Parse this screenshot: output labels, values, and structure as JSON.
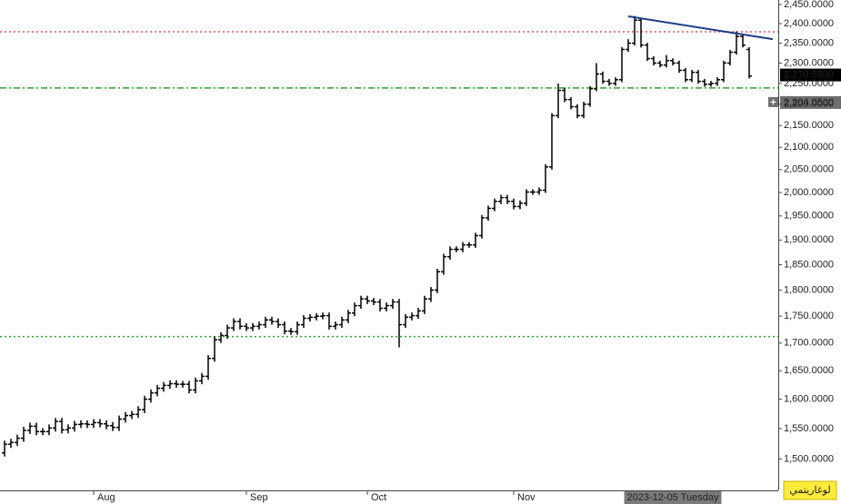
{
  "chart_data": {
    "type": "ohlc",
    "color": "#000000",
    "log_scale": true,
    "grid": false,
    "categories": [
      null,
      null,
      null,
      null,
      null,
      null,
      null,
      null,
      null,
      null,
      null,
      null,
      null,
      null,
      "Aug",
      null,
      null,
      null,
      null,
      null,
      null,
      null,
      null,
      null,
      null,
      null,
      null,
      null,
      null,
      null,
      null,
      null,
      null,
      null,
      null,
      null,
      null,
      null,
      "Sep",
      null,
      null,
      null,
      null,
      null,
      null,
      null,
      null,
      null,
      null,
      null,
      null,
      null,
      null,
      null,
      null,
      null,
      null,
      "Oct",
      null,
      null,
      null,
      null,
      null,
      null,
      null,
      null,
      null,
      null,
      null,
      null,
      null,
      null,
      null,
      null,
      null,
      null,
      null,
      null,
      null,
      null,
      "Nov",
      null,
      null,
      null,
      null,
      null,
      null,
      null,
      null,
      null,
      null,
      null,
      null,
      null,
      null,
      null,
      null,
      null,
      null,
      null,
      null,
      null,
      null,
      null,
      null,
      "2023-12-05 Tuesday",
      null,
      null,
      null,
      null,
      null,
      null,
      null,
      null,
      null,
      null,
      null,
      null
    ],
    "highlighted_category": 105,
    "open": [
      1510,
      1524,
      1527,
      1534,
      1547,
      1554,
      1545,
      1545,
      1551,
      1562,
      1548,
      1551,
      1557,
      1558,
      1557,
      1560,
      1558,
      1555,
      1552,
      1566,
      1572,
      1574,
      1582,
      1600,
      1611,
      1619,
      1624,
      1627,
      1626,
      1626,
      1616,
      1632,
      1640,
      1672,
      1706,
      1714,
      1728,
      1740,
      1731,
      1728,
      1731,
      1734,
      1743,
      1740,
      1734,
      1722,
      1721,
      1734,
      1746,
      1748,
      1750,
      1751,
      1731,
      1734,
      1743,
      1756,
      1770,
      1783,
      1779,
      1777,
      1765,
      1770,
      1777,
      1734,
      1748,
      1751,
      1760,
      1783,
      1800,
      1836,
      1866,
      1881,
      1881,
      1890,
      1890,
      1909,
      1946,
      1966,
      1981,
      1989,
      1981,
      1970,
      1977,
      2001,
      2001,
      2005,
      2056,
      2173,
      2233,
      2211,
      2194,
      2173,
      2200,
      2237,
      2273,
      2255,
      2250,
      2259,
      2334,
      2350,
      2409,
      2345,
      2311,
      2300,
      2295,
      2306,
      2300,
      2282,
      2259,
      2277,
      2255,
      2248,
      2250,
      2259,
      2300,
      2327,
      2367,
      2334
    ],
    "high": [
      1530,
      1533,
      1540,
      1553,
      1560,
      1560,
      1551,
      1557,
      1568,
      1568,
      1557,
      1563,
      1564,
      1564,
      1566,
      1566,
      1564,
      1561,
      1572,
      1578,
      1580,
      1588,
      1606,
      1617,
      1625,
      1630,
      1633,
      1633,
      1632,
      1632,
      1638,
      1646,
      1678,
      1712,
      1720,
      1734,
      1746,
      1746,
      1737,
      1737,
      1740,
      1749,
      1749,
      1746,
      1740,
      1728,
      1740,
      1752,
      1754,
      1756,
      1757,
      1757,
      1740,
      1749,
      1762,
      1776,
      1789,
      1789,
      1785,
      1783,
      1776,
      1783,
      1783,
      1754,
      1757,
      1766,
      1789,
      1806,
      1842,
      1872,
      1887,
      1887,
      1896,
      1896,
      1915,
      1952,
      1972,
      1987,
      1995,
      1995,
      1987,
      1983,
      2007,
      2007,
      2011,
      2062,
      2179,
      2250,
      2239,
      2217,
      2200,
      2206,
      2243,
      2300,
      2279,
      2261,
      2265,
      2340,
      2360,
      2420,
      2415,
      2351,
      2317,
      2306,
      2320,
      2312,
      2306,
      2288,
      2283,
      2283,
      2261,
      2256,
      2265,
      2306,
      2333,
      2380,
      2373,
      2340
    ],
    "low": [
      1504,
      1518,
      1521,
      1528,
      1541,
      1539,
      1539,
      1539,
      1545,
      1542,
      1542,
      1545,
      1551,
      1551,
      1551,
      1552,
      1549,
      1546,
      1546,
      1560,
      1566,
      1568,
      1576,
      1594,
      1605,
      1613,
      1618,
      1620,
      1620,
      1610,
      1610,
      1626,
      1634,
      1666,
      1700,
      1708,
      1722,
      1725,
      1722,
      1722,
      1725,
      1728,
      1734,
      1728,
      1716,
      1715,
      1715,
      1728,
      1740,
      1742,
      1744,
      1725,
      1725,
      1728,
      1737,
      1750,
      1764,
      1773,
      1771,
      1759,
      1759,
      1764,
      1692,
      1728,
      1742,
      1745,
      1754,
      1777,
      1794,
      1830,
      1860,
      1875,
      1875,
      1884,
      1884,
      1903,
      1940,
      1960,
      1975,
      1975,
      1964,
      1964,
      1971,
      1995,
      1995,
      1999,
      2050,
      2167,
      2205,
      2188,
      2167,
      2167,
      2194,
      2231,
      2249,
      2244,
      2244,
      2253,
      2328,
      2344,
      2339,
      2305,
      2294,
      2289,
      2289,
      2294,
      2276,
      2253,
      2253,
      2249,
      2242,
      2242,
      2244,
      2253,
      2294,
      2321,
      2339,
      2262
    ],
    "close": [
      1524,
      1527,
      1534,
      1547,
      1554,
      1545,
      1545,
      1551,
      1562,
      1548,
      1551,
      1557,
      1558,
      1557,
      1560,
      1558,
      1555,
      1552,
      1566,
      1572,
      1574,
      1582,
      1600,
      1611,
      1619,
      1624,
      1627,
      1626,
      1626,
      1616,
      1632,
      1640,
      1672,
      1706,
      1714,
      1728,
      1740,
      1731,
      1728,
      1731,
      1734,
      1743,
      1740,
      1734,
      1722,
      1721,
      1734,
      1746,
      1748,
      1750,
      1751,
      1731,
      1734,
      1743,
      1756,
      1770,
      1783,
      1779,
      1777,
      1765,
      1770,
      1777,
      1734,
      1748,
      1751,
      1760,
      1783,
      1800,
      1836,
      1866,
      1881,
      1881,
      1890,
      1890,
      1909,
      1946,
      1966,
      1981,
      1989,
      1981,
      1970,
      1977,
      2001,
      2001,
      2005,
      2056,
      2173,
      2233,
      2211,
      2194,
      2173,
      2200,
      2237,
      2273,
      2255,
      2250,
      2259,
      2334,
      2350,
      2409,
      2345,
      2311,
      2300,
      2295,
      2306,
      2300,
      2282,
      2259,
      2277,
      2255,
      2248,
      2250,
      2259,
      2300,
      2327,
      2367,
      2345,
      2268
    ],
    "ylim": [
      1450,
      2462
    ],
    "yticks": [
      {
        "value": 1500,
        "label": "1,500.0000"
      },
      {
        "value": 1550,
        "label": "1,550.0000"
      },
      {
        "value": 1600,
        "label": "1,600.0000"
      },
      {
        "value": 1650,
        "label": "1,650.0000"
      },
      {
        "value": 1700,
        "label": "1,700.0000"
      },
      {
        "value": 1750,
        "label": "1,750.0000"
      },
      {
        "value": 1800,
        "label": "1,800.0000"
      },
      {
        "value": 1850,
        "label": "1,850.0000"
      },
      {
        "value": 1900,
        "label": "1,900.0000"
      },
      {
        "value": 1950,
        "label": "1,950.0000"
      },
      {
        "value": 2000,
        "label": "2,000.0000"
      },
      {
        "value": 2050,
        "label": "2,050.0000"
      },
      {
        "value": 2100,
        "label": "2,100.0000"
      },
      {
        "value": 2150,
        "label": "2,150.0000"
      },
      {
        "value": 2200,
        "label": "2,200.0000"
      },
      {
        "value": 2250,
        "label": "2,250.0000"
      },
      {
        "value": 2300,
        "label": "2,300.0000"
      },
      {
        "value": 2350,
        "label": "2,350.0000"
      },
      {
        "value": 2400,
        "label": "2,400.0000"
      },
      {
        "value": 2450,
        "label": "2,450.0000"
      }
    ],
    "horizontal_lines": [
      {
        "value": 2379,
        "color": "#e05555",
        "style": "dotted"
      },
      {
        "value": 2239,
        "color": "#2aa52a",
        "style": "dash-dot"
      },
      {
        "value": 1712,
        "color": "#2aa52a",
        "style": "dotted"
      }
    ],
    "trendline": {
      "x": [
        98,
        120.7
      ],
      "values": [
        2419,
        2360
      ],
      "color": "#1f3c88"
    },
    "price_labels": [
      {
        "value": 2270.58,
        "label": "2,270.5800",
        "background": "#000000",
        "text_color": "#ffffff"
      },
      {
        "value": 2204.05,
        "label": "2,204.0500",
        "background": "#6e6e6e",
        "text_color": "#ffffff"
      }
    ],
    "scale_button": "لوغاريتمي"
  }
}
